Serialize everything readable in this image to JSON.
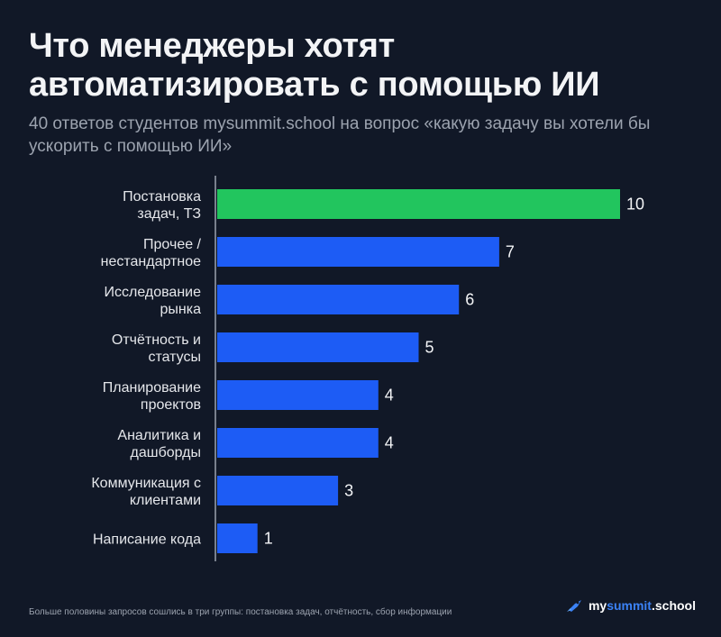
{
  "header": {
    "title": "Что менеджеры хотят автоматизировать с помощью ИИ",
    "subtitle": "40 ответов студентов mysummit.school на вопрос «какую задачу вы хотели бы ускорить с помощью ИИ»"
  },
  "footnote": "Больше половины запросов сошлись в три группы: постановка задач, отчётность, сбор информации",
  "brand": {
    "part1": "my",
    "part2": "summit",
    "part3": ".school",
    "icon": "rocket-icon"
  },
  "colors": {
    "background": "#111827",
    "highlight": "#22c55e",
    "bar": "#1d5cf5",
    "axis": "#9ca3af"
  },
  "chart_data": {
    "type": "bar",
    "orientation": "horizontal",
    "categories": [
      [
        "Постановка",
        "задач, ТЗ"
      ],
      [
        "Прочее /",
        "нестандартное"
      ],
      [
        "Исследование",
        "рынка"
      ],
      [
        "Отчётность и",
        "статусы"
      ],
      [
        "Планирование",
        "проектов"
      ],
      [
        "Аналитика и",
        "дашборды"
      ],
      [
        "Коммуникация с",
        "клиентами"
      ],
      [
        "Написание кода"
      ]
    ],
    "values": [
      10,
      7,
      6,
      5,
      4,
      4,
      3,
      1
    ],
    "highlight_index": 0,
    "xlim": [
      0,
      10
    ],
    "grid": false
  }
}
